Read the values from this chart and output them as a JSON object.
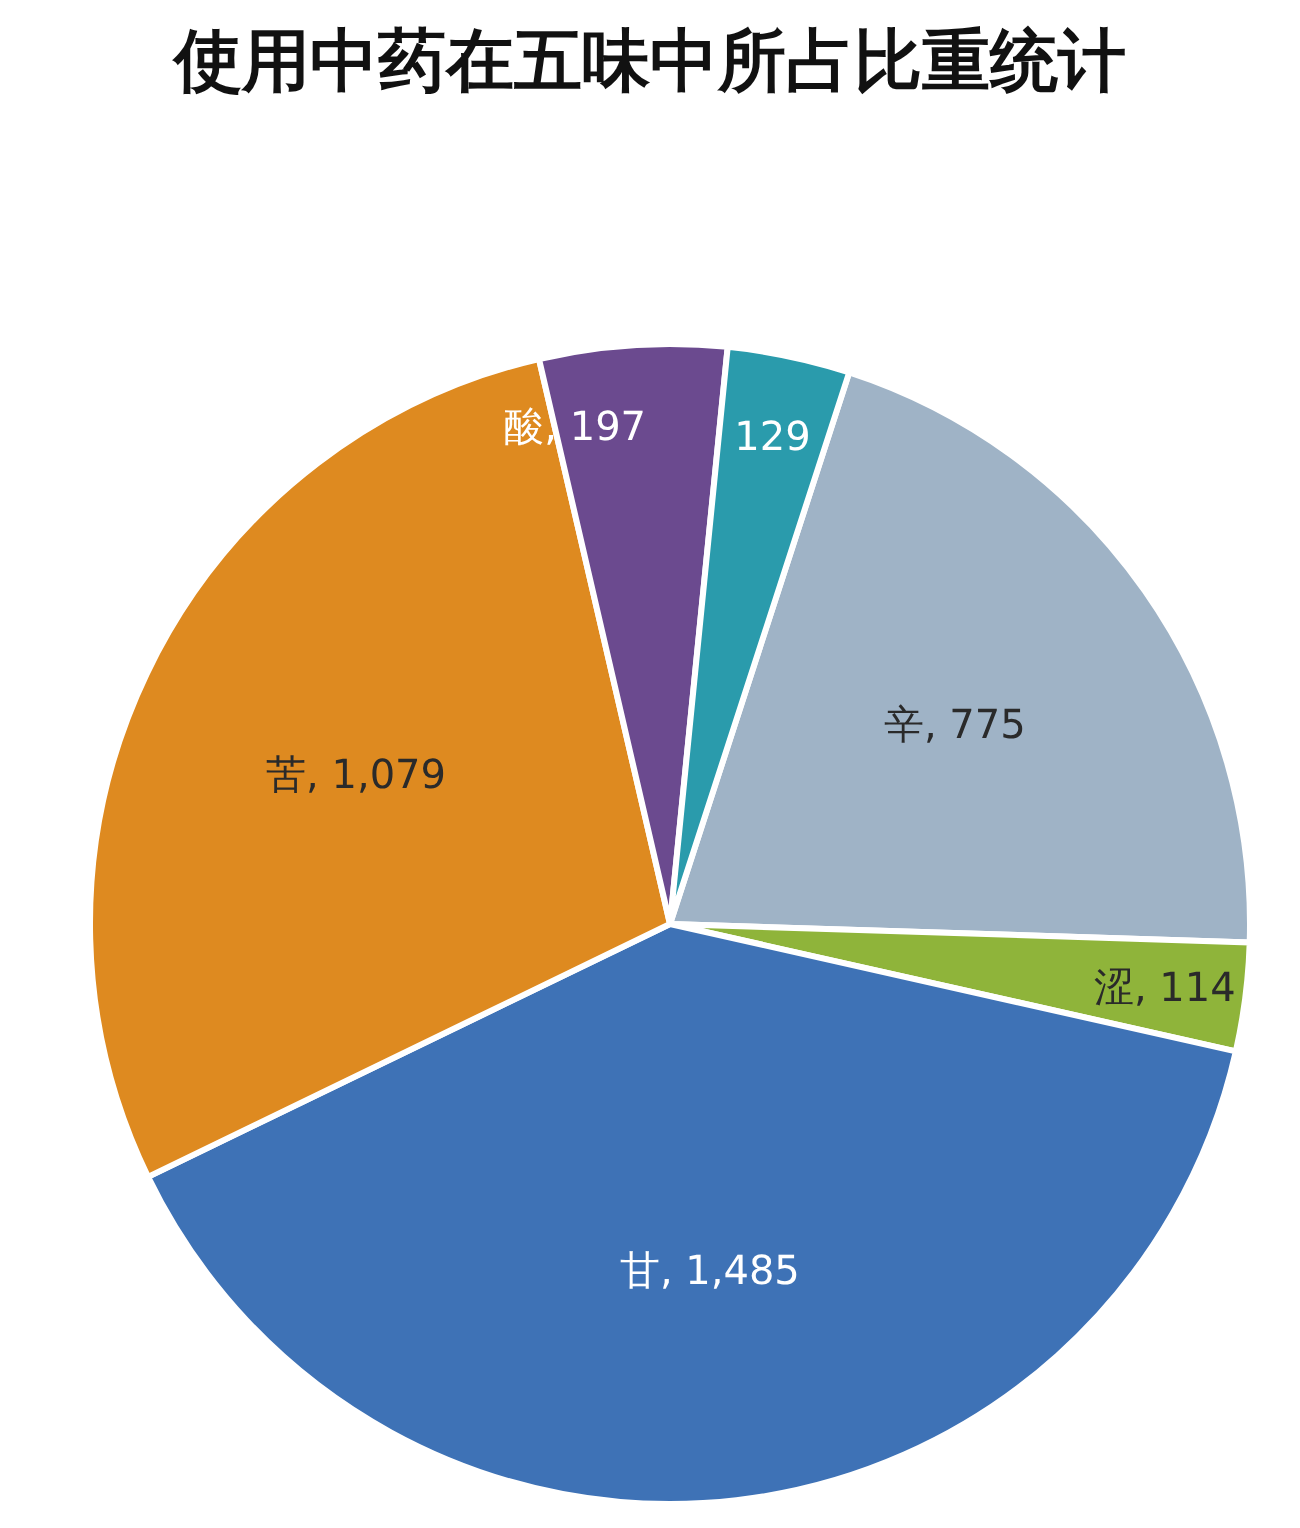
{
  "chart_data": {
    "type": "pie",
    "title": "使用中药在五味中所占比重统计",
    "categories": [
      "辛",
      "涩",
      "甘",
      "苦",
      "酸",
      null
    ],
    "values": [
      775,
      114,
      1485,
      1079,
      197,
      129
    ],
    "colors": [
      "#9fb3c6",
      "#8fb43a",
      "#3e72b6",
      "#de8a20",
      "#6b4a8f",
      "#2a9bac"
    ],
    "value_labels": [
      ", 775",
      ", 114",
      ", 1,485",
      ", 1,079",
      ", 197",
      "129"
    ]
  }
}
